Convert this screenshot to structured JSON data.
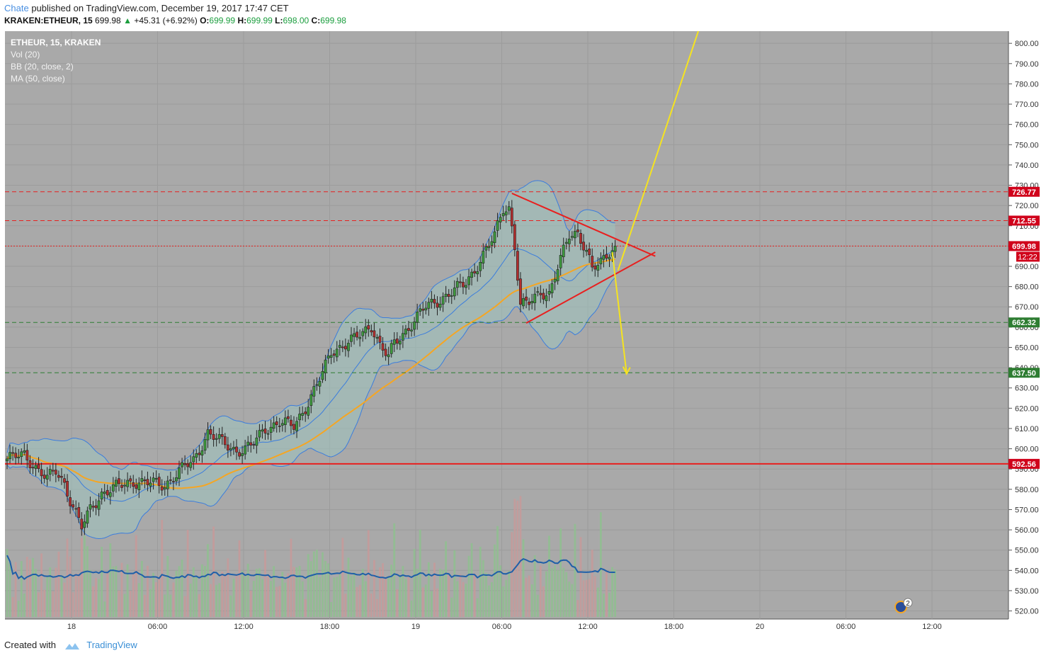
{
  "header": {
    "user": "Chate",
    "published_text": "published on TradingView.com, December 19, 2017 17:47 CET"
  },
  "quote": {
    "symbol": "KRAKEN:ETHEUR, 15",
    "last": "699.98",
    "change": "+45.31 (+6.92%)",
    "open_label": "O:",
    "open": "699.99",
    "high_label": "H:",
    "high": "699.99",
    "low_label": "L:",
    "low": "698.00",
    "close_label": "C:",
    "close": "699.98"
  },
  "legend": [
    "ETHEUR, 15, KRAKEN",
    "Vol (20)",
    "BB (20, close, 2)",
    "MA (50, close)"
  ],
  "colors": {
    "plot_bg": "#a9a9a9",
    "candle_up": "#3d9a3d",
    "candle_down": "#b32f2f",
    "bb_line": "#3b7ddd",
    "bb_fill": "#9fc5c0",
    "ma_line": "#f5a623",
    "vol_ma": "#1f5fa8",
    "resistance": "#e8201f",
    "support": "#2e7d32",
    "arrow": "#f5e320"
  },
  "chart_data": {
    "type": "candlestick",
    "instrument": "KRAKEN:ETHEUR",
    "interval": "15",
    "ylim": [
      516,
      806
    ],
    "y_ticks": [
      520,
      530,
      540,
      550,
      560,
      570,
      580,
      590,
      600,
      610,
      620,
      630,
      640,
      650,
      660,
      670,
      680,
      690,
      700,
      710,
      720,
      730,
      740,
      750,
      760,
      770,
      780,
      790,
      800
    ],
    "x_ticks": [
      "18",
      "06:00",
      "12:00",
      "18:00",
      "19",
      "06:00",
      "12:00",
      "18:00",
      "20",
      "06:00",
      "12:00"
    ],
    "price_anchors": [
      [
        0,
        595
      ],
      [
        6,
        597
      ],
      [
        10,
        591
      ],
      [
        14,
        585
      ],
      [
        17,
        589
      ],
      [
        20,
        583
      ],
      [
        22,
        575
      ],
      [
        26,
        561
      ],
      [
        29,
        570
      ],
      [
        33,
        578
      ],
      [
        38,
        581
      ],
      [
        44,
        584
      ],
      [
        50,
        583
      ],
      [
        55,
        582
      ],
      [
        60,
        589
      ],
      [
        65,
        594
      ],
      [
        70,
        608
      ],
      [
        75,
        603
      ],
      [
        80,
        599
      ],
      [
        85,
        601
      ],
      [
        90,
        610
      ],
      [
        95,
        613
      ],
      [
        100,
        611
      ],
      [
        105,
        623
      ],
      [
        110,
        637
      ],
      [
        113,
        648
      ],
      [
        117,
        651
      ],
      [
        121,
        654
      ],
      [
        124,
        657
      ],
      [
        127,
        661
      ],
      [
        130,
        651
      ],
      [
        133,
        645
      ],
      [
        135,
        652
      ],
      [
        140,
        660
      ],
      [
        146,
        670
      ],
      [
        150,
        673
      ],
      [
        155,
        677
      ],
      [
        160,
        682
      ],
      [
        165,
        693
      ],
      [
        170,
        705
      ],
      [
        173,
        719
      ],
      [
        175,
        719
      ],
      [
        177,
        700
      ],
      [
        179,
        670
      ],
      [
        182,
        672
      ],
      [
        186,
        678
      ],
      [
        189,
        676
      ],
      [
        193,
        693
      ],
      [
        196,
        706
      ],
      [
        199,
        707
      ],
      [
        202,
        697
      ],
      [
        204,
        688
      ],
      [
        207,
        692
      ],
      [
        210,
        698
      ],
      [
        212,
        700
      ]
    ],
    "horizontal_levels": [
      {
        "value": 726.77,
        "label": "726.77",
        "style": "dashed",
        "color": "red"
      },
      {
        "value": 712.55,
        "label": "712.55",
        "style": "dashed",
        "color": "red"
      },
      {
        "value": 699.98,
        "label": "699.98",
        "style": "dotted",
        "color": "red",
        "sublabel": "12:22"
      },
      {
        "value": 662.32,
        "label": "662.32",
        "style": "dashed",
        "color": "green"
      },
      {
        "value": 637.5,
        "label": "637.50",
        "style": "dashed",
        "color": "green"
      },
      {
        "value": 592.56,
        "label": "592.56",
        "style": "solid",
        "color": "red"
      }
    ],
    "annotations": {
      "triangle_upper": [
        [
          176,
          726
        ],
        [
          226,
          695
        ]
      ],
      "triangle_lower": [
        [
          181,
          662
        ],
        [
          226,
          697
        ]
      ],
      "arrow_up": {
        "from": [
          213,
          688
        ],
        "to": [
          241,
          806
        ]
      },
      "arrow_down": {
        "from": [
          211,
          697
        ],
        "to": [
          216,
          637
        ]
      }
    },
    "event_badge": "2"
  },
  "footer": {
    "created_with": "Created with",
    "brand": "TradingView"
  }
}
